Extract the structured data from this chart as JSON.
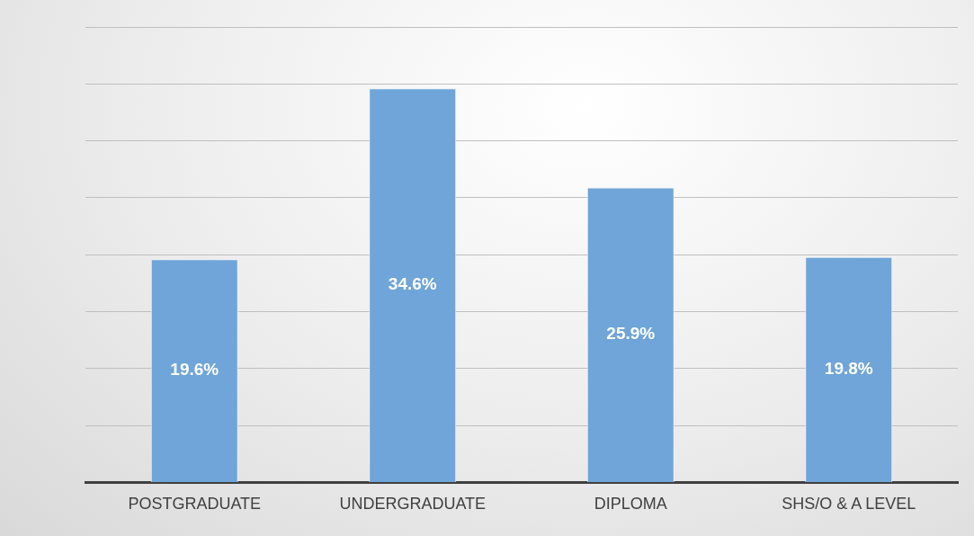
{
  "chart_data": {
    "type": "bar",
    "categories": [
      "POSTGRADUATE",
      "UNDERGRADUATE",
      "DIPLOMA",
      "SHS/O & A LEVEL"
    ],
    "values": [
      19.6,
      34.6,
      25.9,
      19.8
    ],
    "value_labels": [
      "19.6%",
      "34.6%",
      "25.9%",
      "19.8%"
    ],
    "color": "#6fa5d8",
    "ylim": [
      0,
      40
    ],
    "yticks": [
      {
        "value": 0,
        "label": null
      },
      {
        "value": 5,
        "label": null
      },
      {
        "value": 10,
        "label": null
      },
      {
        "value": 15,
        "label": null
      },
      {
        "value": 20,
        "label": null
      },
      {
        "value": 25,
        "label": null
      },
      {
        "value": 30,
        "label": null
      },
      {
        "value": 35,
        "label": null
      },
      {
        "value": 40,
        "label": null
      }
    ],
    "grid": "y",
    "tick_labels": "x",
    "legend": false
  }
}
